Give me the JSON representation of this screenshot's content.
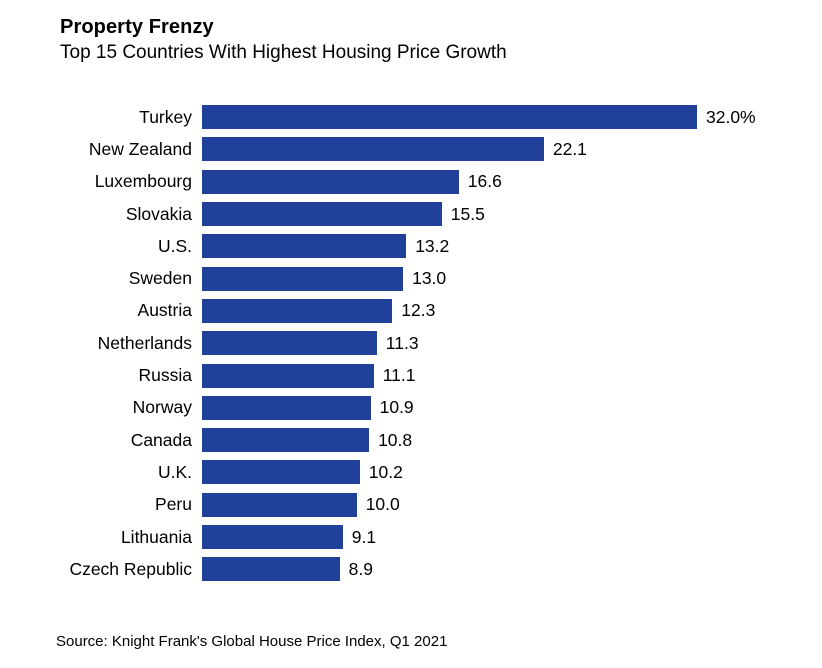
{
  "header": {
    "title": "Property Frenzy",
    "subtitle": "Top 15 Countries With Highest Housing Price Growth"
  },
  "source": "Source: Knight Frank's Global House Price Index, Q1 2021",
  "colors": {
    "bar": "#21409A",
    "background": "#FFFFFF",
    "text": "#000000"
  },
  "chart_data": {
    "type": "bar",
    "orientation": "horizontal",
    "title": "Property Frenzy",
    "subtitle": "Top 15 Countries With Highest Housing Price Growth",
    "xlabel": "",
    "ylabel": "",
    "xlim": [
      0,
      32
    ],
    "grid": false,
    "legend": "none",
    "unit": "percent",
    "categories": [
      "Turkey",
      "New Zealand",
      "Luxembourg",
      "Slovakia",
      "U.S.",
      "Sweden",
      "Austria",
      "Netherlands",
      "Russia",
      "Norway",
      "Canada",
      "U.K.",
      "Peru",
      "Lithuania",
      "Czech Republic"
    ],
    "values": [
      32.0,
      22.1,
      16.6,
      15.5,
      13.2,
      13.0,
      12.3,
      11.3,
      11.1,
      10.9,
      10.8,
      10.2,
      10.0,
      9.1,
      8.9
    ],
    "value_labels": [
      "32.0%",
      "22.1",
      "16.6",
      "15.5",
      "13.2",
      "13.0",
      "12.3",
      "11.3",
      "11.1",
      "10.9",
      "10.8",
      "10.2",
      "10.0",
      "9.1",
      "8.9"
    ]
  }
}
